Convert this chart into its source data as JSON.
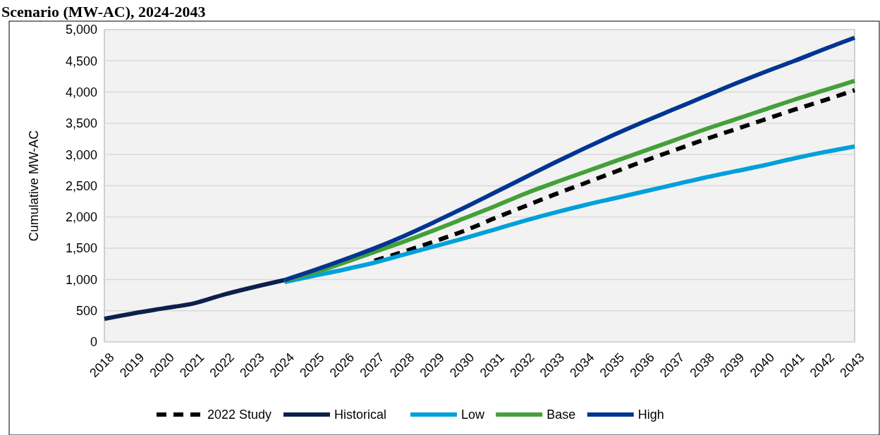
{
  "chart_data": {
    "type": "line",
    "title": "Scenario (MW-AC), 2024-2043",
    "ylabel": "Cumulative MW-AC",
    "categories": [
      "2018",
      "2019",
      "2020",
      "2021",
      "2022",
      "2023",
      "2024",
      "2025",
      "2026",
      "2027",
      "2028",
      "2029",
      "2030",
      "2031",
      "2032",
      "2033",
      "2034",
      "2035",
      "2036",
      "2037",
      "2038",
      "2039",
      "2040",
      "2041",
      "2042",
      "2043"
    ],
    "ylim": [
      0,
      5000
    ],
    "yticks": [
      {
        "value": 0,
        "label": "0"
      },
      {
        "value": 500,
        "label": "500"
      },
      {
        "value": 1000,
        "label": "1,000"
      },
      {
        "value": 1500,
        "label": "1,500"
      },
      {
        "value": 2000,
        "label": "2,000"
      },
      {
        "value": 2500,
        "label": "2,500"
      },
      {
        "value": 3000,
        "label": "3,000"
      },
      {
        "value": 3500,
        "label": "3,500"
      },
      {
        "value": 4000,
        "label": "4,000"
      },
      {
        "value": 4500,
        "label": "4,500"
      },
      {
        "value": 5000,
        "label": "5,000"
      }
    ],
    "grid": "y",
    "legend": "bottom",
    "marker": "none",
    "series": [
      {
        "name": "2022 Study",
        "color": "#000000",
        "line_style": "dashed",
        "values": [
          null,
          null,
          null,
          null,
          null,
          null,
          null,
          null,
          null,
          1300,
          1450,
          1610,
          1780,
          1980,
          2170,
          2360,
          2540,
          2720,
          2900,
          3070,
          3240,
          3400,
          3560,
          3720,
          3870,
          4030
        ]
      },
      {
        "name": "Historical",
        "color": "#0d1f4d",
        "line_style": "solid",
        "values": [
          370,
          460,
          540,
          620,
          760,
          880,
          990,
          null,
          null,
          null,
          null,
          null,
          null,
          null,
          null,
          null,
          null,
          null,
          null,
          null,
          null,
          null,
          null,
          null,
          null,
          null
        ]
      },
      {
        "name": "Low",
        "color": "#00a0dc",
        "line_style": "solid",
        "values": [
          null,
          null,
          null,
          null,
          null,
          null,
          960,
          1060,
          1160,
          1270,
          1400,
          1530,
          1660,
          1800,
          1940,
          2070,
          2190,
          2300,
          2410,
          2520,
          2630,
          2730,
          2830,
          2940,
          3040,
          3130
        ]
      },
      {
        "name": "Base",
        "color": "#44a038",
        "line_style": "solid",
        "values": [
          null,
          null,
          null,
          null,
          null,
          null,
          980,
          1110,
          1270,
          1440,
          1610,
          1790,
          1980,
          2170,
          2370,
          2550,
          2720,
          2890,
          3060,
          3230,
          3400,
          3560,
          3720,
          3880,
          4030,
          4180
        ]
      },
      {
        "name": "High",
        "color": "#003591",
        "line_style": "solid",
        "values": [
          null,
          null,
          null,
          null,
          null,
          null,
          990,
          1150,
          1320,
          1500,
          1700,
          1920,
          2150,
          2390,
          2630,
          2870,
          3100,
          3320,
          3530,
          3730,
          3930,
          4130,
          4320,
          4500,
          4690,
          4870
        ]
      }
    ]
  }
}
